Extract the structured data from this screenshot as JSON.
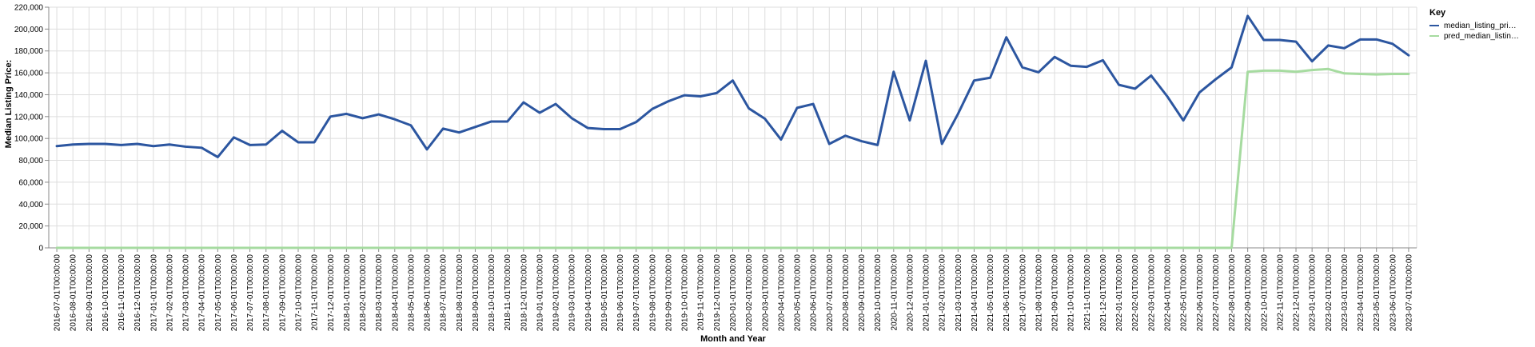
{
  "chart_data": {
    "type": "line",
    "xlabel": "Month and Year",
    "ylabel": "Median Listing Price:",
    "ylim": [
      0,
      220000
    ],
    "yticks": [
      0,
      20000,
      40000,
      60000,
      80000,
      100000,
      120000,
      140000,
      160000,
      180000,
      200000,
      220000
    ],
    "ytick_labels": [
      "0",
      "20,000",
      "40,000",
      "60,000",
      "80,000",
      "100,000",
      "120,000",
      "140,000",
      "160,000",
      "180,000",
      "200,000",
      "220,000"
    ],
    "grid": true,
    "legend": {
      "title": "Key",
      "placement": "top-right",
      "entries": [
        "median_listing_pri…",
        "pred_median_listin…"
      ]
    },
    "x": [
      "2016-07-01T00:00:00",
      "2016-08-01T00:00:00",
      "2016-09-01T00:00:00",
      "2016-10-01T00:00:00",
      "2016-11-01T00:00:00",
      "2016-12-01T00:00:00",
      "2017-01-01T00:00:00",
      "2017-02-01T00:00:00",
      "2017-03-01T00:00:00",
      "2017-04-01T00:00:00",
      "2017-05-01T00:00:00",
      "2017-06-01T00:00:00",
      "2017-07-01T00:00:00",
      "2017-08-01T00:00:00",
      "2017-09-01T00:00:00",
      "2017-10-01T00:00:00",
      "2017-11-01T00:00:00",
      "2017-12-01T00:00:00",
      "2018-01-01T00:00:00",
      "2018-02-01T00:00:00",
      "2018-03-01T00:00:00",
      "2018-04-01T00:00:00",
      "2018-05-01T00:00:00",
      "2018-06-01T00:00:00",
      "2018-07-01T00:00:00",
      "2018-08-01T00:00:00",
      "2018-09-01T00:00:00",
      "2018-10-01T00:00:00",
      "2018-11-01T00:00:00",
      "2018-12-01T00:00:00",
      "2019-01-01T00:00:00",
      "2019-02-01T00:00:00",
      "2019-03-01T00:00:00",
      "2019-04-01T00:00:00",
      "2019-05-01T00:00:00",
      "2019-06-01T00:00:00",
      "2019-07-01T00:00:00",
      "2019-08-01T00:00:00",
      "2019-09-01T00:00:00",
      "2019-10-01T00:00:00",
      "2019-11-01T00:00:00",
      "2019-12-01T00:00:00",
      "2020-01-01T00:00:00",
      "2020-02-01T00:00:00",
      "2020-03-01T00:00:00",
      "2020-04-01T00:00:00",
      "2020-05-01T00:00:00",
      "2020-06-01T00:00:00",
      "2020-07-01T00:00:00",
      "2020-08-01T00:00:00",
      "2020-09-01T00:00:00",
      "2020-10-01T00:00:00",
      "2020-11-01T00:00:00",
      "2020-12-01T00:00:00",
      "2021-01-01T00:00:00",
      "2021-02-01T00:00:00",
      "2021-03-01T00:00:00",
      "2021-04-01T00:00:00",
      "2021-05-01T00:00:00",
      "2021-06-01T00:00:00",
      "2021-07-01T00:00:00",
      "2021-08-01T00:00:00",
      "2021-09-01T00:00:00",
      "2021-10-01T00:00:00",
      "2021-11-01T00:00:00",
      "2021-12-01T00:00:00",
      "2022-01-01T00:00:00",
      "2022-02-01T00:00:00",
      "2022-03-01T00:00:00",
      "2022-04-01T00:00:00",
      "2022-05-01T00:00:00",
      "2022-06-01T00:00:00",
      "2022-07-01T00:00:00",
      "2022-08-01T00:00:00",
      "2022-09-01T00:00:00",
      "2022-10-01T00:00:00",
      "2022-11-01T00:00:00",
      "2022-12-01T00:00:00",
      "2023-01-01T00:00:00",
      "2023-02-01T00:00:00",
      "2023-03-01T00:00:00",
      "2023-04-01T00:00:00",
      "2023-05-01T00:00:00",
      "2023-06-01T00:00:00",
      "2023-07-01T00:00:00"
    ],
    "series": [
      {
        "name": "median_listing_pri…",
        "color": "#2c56a0",
        "values": [
          93000,
          94500,
          95000,
          95000,
          94000,
          95000,
          93000,
          94500,
          92500,
          91500,
          83000,
          101000,
          94000,
          94500,
          107000,
          96500,
          96500,
          120000,
          122500,
          118500,
          122000,
          117500,
          112000,
          90000,
          109000,
          105500,
          110500,
          115500,
          115500,
          133000,
          123500,
          131500,
          118500,
          109500,
          108500,
          108500,
          115000,
          127000,
          134000,
          139500,
          138500,
          141500,
          153000,
          127500,
          118000,
          99000,
          128000,
          131500,
          95000,
          102500,
          97500,
          94000,
          161000,
          116500,
          171000,
          95000,
          122500,
          153000,
          155500,
          192500,
          165000,
          160500,
          174500,
          166500,
          165500,
          171500,
          149000,
          145500,
          157500,
          138500,
          116500,
          142000,
          154000,
          165000,
          212000,
          190000,
          190000,
          188500,
          170500,
          185000,
          182500,
          190500,
          190500,
          186500,
          176000
        ]
      },
      {
        "name": "pred_median_listin…",
        "color": "#a6dba0",
        "values": [
          0,
          0,
          0,
          0,
          0,
          0,
          0,
          0,
          0,
          0,
          0,
          0,
          0,
          0,
          0,
          0,
          0,
          0,
          0,
          0,
          0,
          0,
          0,
          0,
          0,
          0,
          0,
          0,
          0,
          0,
          0,
          0,
          0,
          0,
          0,
          0,
          0,
          0,
          0,
          0,
          0,
          0,
          0,
          0,
          0,
          0,
          0,
          0,
          0,
          0,
          0,
          0,
          0,
          0,
          0,
          0,
          0,
          0,
          0,
          0,
          0,
          0,
          0,
          0,
          0,
          0,
          0,
          0,
          0,
          0,
          0,
          0,
          0,
          0,
          161000,
          162000,
          162000,
          161000,
          162500,
          163500,
          159500,
          159000,
          158500,
          159000,
          159000
        ]
      }
    ]
  }
}
